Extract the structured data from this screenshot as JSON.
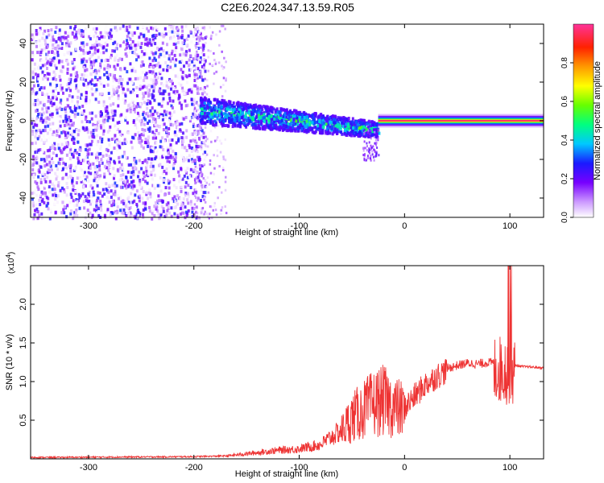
{
  "figure_title": "C2E6.2024.347.13.59.R05",
  "chart_data": [
    {
      "type": "heatmap",
      "title": "",
      "xlabel": "Height of straight line (km)",
      "ylabel": "Frequency (Hz)",
      "xlim": [
        -355,
        132
      ],
      "ylim": [
        -50,
        50
      ],
      "xticks": [
        -300,
        -200,
        -100,
        0,
        100
      ],
      "yticks": [
        -40,
        -20,
        0,
        20,
        40
      ],
      "colorbar": {
        "label": "Normalized spectral amplitude",
        "range": [
          0,
          1
        ],
        "ticks": [
          "0.0",
          "0.2",
          "0.4",
          "0.6",
          "0.8"
        ],
        "tick_values": [
          0.0,
          0.2,
          0.4,
          0.6,
          0.8
        ]
      },
      "regions": [
        {
          "name": "noise",
          "x": [
            -355,
            -190
          ],
          "freq_range": [
            -50,
            50
          ],
          "amplitude": [
            0.0,
            0.3
          ]
        },
        {
          "name": "noise-fade",
          "x": [
            -200,
            -170
          ],
          "freq_range": [
            -50,
            50
          ],
          "amplitude": [
            0.0,
            0.15
          ]
        },
        {
          "name": "broad-signal",
          "x": [
            -195,
            -25
          ],
          "center_freq": [
            6,
            -4
          ],
          "halfwidth_hz": [
            7,
            4
          ],
          "amplitude": [
            0.2,
            0.5
          ]
        },
        {
          "name": "narrow-carrier",
          "x": [
            -25,
            132
          ],
          "center_freq": [
            0,
            0
          ],
          "halfwidth_hz": [
            2,
            2
          ],
          "amplitude": [
            0.85,
            1.0
          ]
        }
      ]
    },
    {
      "type": "line",
      "title": "",
      "xlabel": "Height of straight line (km)",
      "ylabel": "SNR (10 * v/v)",
      "y_multiplier": "(x10",
      "y_multiplier_exp": "4",
      "y_multiplier_close": ")",
      "xlim": [
        -355,
        132
      ],
      "ylim": [
        0,
        2.5
      ],
      "xticks": [
        -300,
        -200,
        -100,
        0,
        100
      ],
      "yticks": [
        0.5,
        1.0,
        1.5,
        2.0
      ],
      "ytick_labels": [
        "0.5",
        "1.0",
        "1.5",
        "2.0"
      ],
      "color": "#ee3333",
      "envelope": [
        {
          "x": -355,
          "y": 0.02
        },
        {
          "x": -200,
          "y": 0.03
        },
        {
          "x": -170,
          "y": 0.04
        },
        {
          "x": -150,
          "y": 0.07
        },
        {
          "x": -120,
          "y": 0.12
        },
        {
          "x": -100,
          "y": 0.14
        },
        {
          "x": -80,
          "y": 0.2
        },
        {
          "x": -60,
          "y": 0.4
        },
        {
          "x": -50,
          "y": 0.6
        },
        {
          "x": -40,
          "y": 0.7
        },
        {
          "x": -30,
          "y": 0.8
        },
        {
          "x": -20,
          "y": 0.85
        },
        {
          "x": -10,
          "y": 0.75
        },
        {
          "x": 0,
          "y": 0.7
        },
        {
          "x": 10,
          "y": 0.85
        },
        {
          "x": 20,
          "y": 1.0
        },
        {
          "x": 30,
          "y": 1.1
        },
        {
          "x": 40,
          "y": 1.18
        },
        {
          "x": 50,
          "y": 1.22
        },
        {
          "x": 60,
          "y": 1.25
        },
        {
          "x": 70,
          "y": 1.24
        },
        {
          "x": 80,
          "y": 1.26
        },
        {
          "x": 90,
          "y": 1.25
        },
        {
          "x": 100,
          "y": 1.23
        },
        {
          "x": 110,
          "y": 1.2
        },
        {
          "x": 132,
          "y": 1.18
        }
      ]
    }
  ]
}
